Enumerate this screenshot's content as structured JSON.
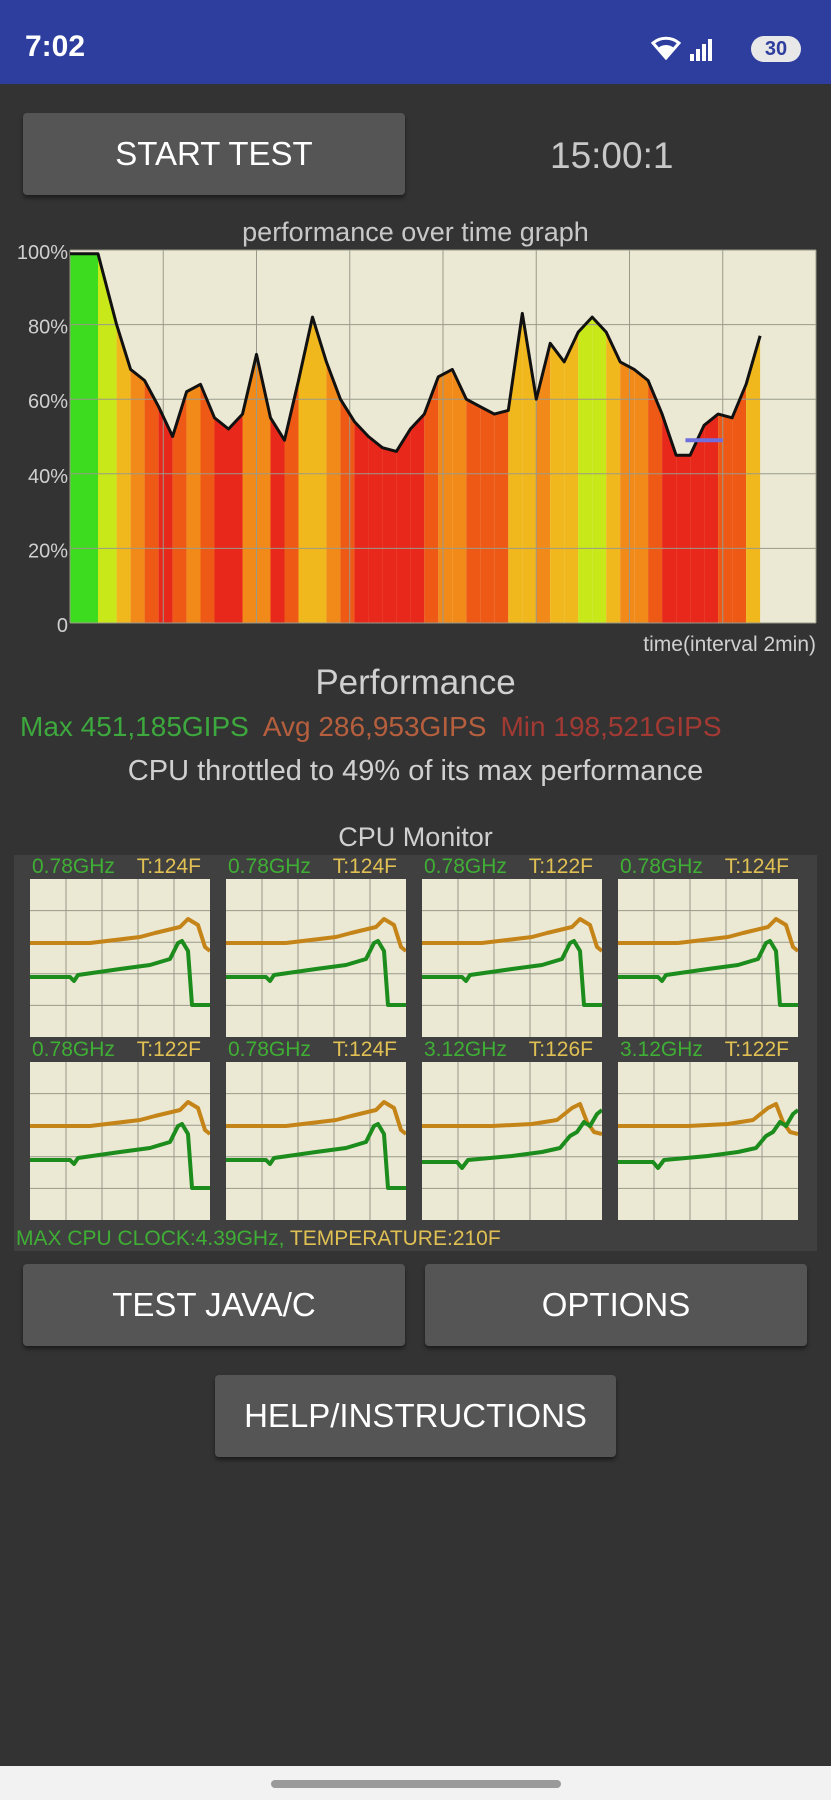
{
  "status": {
    "time": "7:02",
    "battery": "30",
    "icons": [
      "wifi-icon",
      "signal-icon",
      "battery-icon"
    ]
  },
  "controls": {
    "start_label": "START TEST",
    "timer": "15:00:1"
  },
  "graph": {
    "title": "performance over time graph",
    "y_ticks": [
      "100%",
      "80%",
      "60%",
      "40%",
      "20%",
      "0"
    ],
    "x_caption": "time(interval 2min)"
  },
  "performance": {
    "title": "Performance",
    "max": "Max 451,185GIPS",
    "avg": "Avg 286,953GIPS",
    "min": "Min 198,521GIPS",
    "throttle": "CPU throttled to 49% of its max performance"
  },
  "chart_data": {
    "type": "area",
    "title": "performance over time graph",
    "xlabel": "time(interval 2min)",
    "ylabel": "",
    "ylim": [
      0,
      100
    ],
    "y_ticks": [
      0,
      20,
      40,
      60,
      80,
      100
    ],
    "x_interval_minutes": 2,
    "x_minutes": [
      0,
      0.6,
      1.0,
      1.3,
      1.6,
      1.9,
      2.2,
      2.5,
      2.8,
      3.1,
      3.4,
      3.7,
      4.0,
      4.3,
      4.6,
      4.9,
      5.2,
      5.5,
      5.8,
      6.1,
      6.4,
      6.7,
      7.0,
      7.3,
      7.6,
      7.9,
      8.2,
      8.5,
      8.8,
      9.1,
      9.4,
      9.7,
      10.0,
      10.3,
      10.6,
      10.9,
      11.2,
      11.5,
      11.8,
      12.1,
      12.4,
      12.7,
      13.0,
      13.3,
      13.6,
      13.9,
      14.2,
      14.5,
      14.8
    ],
    "performance_percent": [
      99,
      99,
      80,
      68,
      65,
      58,
      50,
      62,
      64,
      55,
      52,
      56,
      72,
      55,
      49,
      65,
      82,
      70,
      60,
      54,
      50,
      47,
      46,
      52,
      56,
      66,
      68,
      60,
      58,
      56,
      57,
      83,
      60,
      75,
      70,
      78,
      82,
      78,
      70,
      68,
      65,
      56,
      45,
      45,
      53,
      56,
      55,
      64,
      77
    ],
    "throttle_marker_percent": 49
  },
  "cpu_monitor": {
    "title": "CPU Monitor",
    "cores": [
      {
        "freq": "0.78GHz",
        "temp": "T:124F",
        "active": false
      },
      {
        "freq": "0.78GHz",
        "temp": "T:124F",
        "active": false
      },
      {
        "freq": "0.78GHz",
        "temp": "T:122F",
        "active": false
      },
      {
        "freq": "0.78GHz",
        "temp": "T:124F",
        "active": false
      },
      {
        "freq": "0.78GHz",
        "temp": "T:122F",
        "active": false
      },
      {
        "freq": "0.78GHz",
        "temp": "T:124F",
        "active": false
      },
      {
        "freq": "3.12GHz",
        "temp": "T:126F",
        "active": true
      },
      {
        "freq": "3.12GHz",
        "temp": "T:122F",
        "active": true
      }
    ],
    "footer_clock": "MAX CPU CLOCK:4.39GHz,",
    "footer_temp": " TEMPERATURE:210F"
  },
  "buttons": {
    "java": "TEST JAVA/C",
    "options": "OPTIONS",
    "help": "HELP/INSTRUCTIONS"
  },
  "colors": {
    "status_bar": "#2d3e9e",
    "background": "#333333",
    "graph_bg": "#ebe8d4",
    "max_green": "#3da83d",
    "avg_orange": "#b65f3e",
    "min_red": "#a23a33",
    "freq_green": "#3fae35",
    "temp_yellow": "#e0c053"
  }
}
